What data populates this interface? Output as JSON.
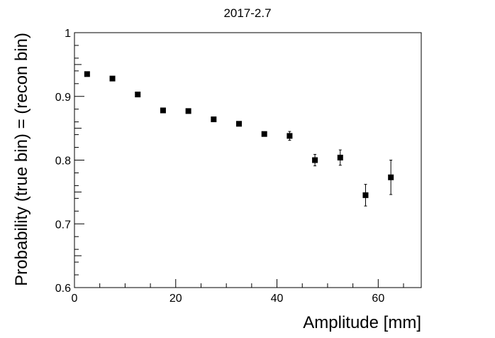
{
  "chart_data": {
    "type": "scatter",
    "title": "2017-2.7",
    "xlabel": "Amplitude [mm]",
    "ylabel": "Probability (true bin) = (recon bin)",
    "xlim": [
      0,
      68.5
    ],
    "ylim": [
      0.6,
      1.0
    ],
    "x_ticks": [
      0,
      20,
      40,
      60
    ],
    "y_ticks": [
      0.6,
      0.7,
      0.8,
      0.9,
      1.0
    ],
    "y_tick_labels": [
      "0.6",
      "0.7",
      "0.8",
      "0.9",
      "1"
    ],
    "x_tick_labels": [
      "0",
      "20",
      "40",
      "60"
    ],
    "grid": false,
    "marker": "filled-square",
    "series": [
      {
        "x": [
          2.5,
          7.5,
          12.5,
          17.5,
          22.5,
          27.5,
          32.5,
          37.5,
          42.5,
          47.5,
          52.5,
          57.5,
          62.5
        ],
        "y": [
          0.935,
          0.928,
          0.903,
          0.878,
          0.877,
          0.864,
          0.857,
          0.841,
          0.838,
          0.8,
          0.804,
          0.745,
          0.773
        ],
        "err": [
          0.002,
          0.002,
          0.002,
          0.002,
          0.003,
          0.003,
          0.003,
          0.003,
          0.007,
          0.009,
          0.012,
          0.017,
          0.027
        ]
      }
    ]
  }
}
